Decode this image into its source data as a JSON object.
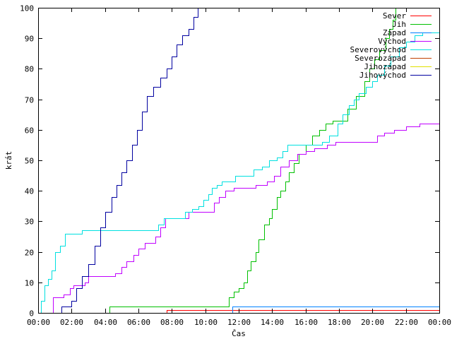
{
  "chart_data": {
    "type": "line",
    "title": "",
    "xlabel": "Čas",
    "ylabel": "krát",
    "xlim": [
      0,
      24
    ],
    "ylim": [
      0,
      100
    ],
    "x_ticks": [
      {
        "value": 0,
        "label": "00:00"
      },
      {
        "value": 2,
        "label": "02:00"
      },
      {
        "value": 4,
        "label": "04:00"
      },
      {
        "value": 6,
        "label": "06:00"
      },
      {
        "value": 8,
        "label": "08:00"
      },
      {
        "value": 10,
        "label": "10:00"
      },
      {
        "value": 12,
        "label": "12:00"
      },
      {
        "value": 14,
        "label": "14:00"
      },
      {
        "value": 16,
        "label": "16:00"
      },
      {
        "value": 18,
        "label": "18:00"
      },
      {
        "value": 20,
        "label": "20:00"
      },
      {
        "value": 22,
        "label": "22:00"
      },
      {
        "value": 24,
        "label": "00:00"
      }
    ],
    "y_ticks": [
      0,
      10,
      20,
      30,
      40,
      50,
      60,
      70,
      80,
      90,
      100
    ],
    "grid": false,
    "legend_position": "top-right",
    "series": [
      {
        "name": "Sever",
        "color": "#ff0000",
        "points": [
          [
            0,
            0
          ],
          [
            7.7,
            0
          ],
          [
            7.7,
            1
          ],
          [
            24,
            1
          ]
        ]
      },
      {
        "name": "Jih",
        "color": "#00c000",
        "points": [
          [
            0,
            0
          ],
          [
            4.25,
            0
          ],
          [
            4.25,
            2
          ],
          [
            11.3,
            2
          ],
          [
            11.4,
            5
          ],
          [
            11.7,
            7
          ],
          [
            12.0,
            8
          ],
          [
            12.3,
            10
          ],
          [
            12.5,
            14
          ],
          [
            12.7,
            17
          ],
          [
            13.0,
            20
          ],
          [
            13.2,
            24
          ],
          [
            13.5,
            29
          ],
          [
            13.8,
            31
          ],
          [
            14.0,
            34
          ],
          [
            14.3,
            38
          ],
          [
            14.5,
            40
          ],
          [
            14.8,
            43
          ],
          [
            15.0,
            46
          ],
          [
            15.3,
            49
          ],
          [
            15.6,
            52
          ],
          [
            16.0,
            55
          ],
          [
            16.4,
            58
          ],
          [
            16.8,
            60
          ],
          [
            17.2,
            62
          ],
          [
            17.6,
            63
          ],
          [
            18.2,
            63
          ],
          [
            18.5,
            67
          ],
          [
            19.0,
            71
          ],
          [
            19.5,
            76
          ],
          [
            19.8,
            80
          ],
          [
            20.1,
            83
          ],
          [
            20.4,
            86
          ],
          [
            20.8,
            90
          ],
          [
            21.0,
            93
          ],
          [
            21.2,
            96
          ],
          [
            21.4,
            100
          ]
        ]
      },
      {
        "name": "Západ",
        "color": "#0080ff",
        "points": [
          [
            0,
            0
          ],
          [
            11.6,
            0
          ],
          [
            11.6,
            2
          ],
          [
            24,
            2
          ]
        ]
      },
      {
        "name": "Východ",
        "color": "#c000ff",
        "points": [
          [
            0,
            0
          ],
          [
            0.7,
            0
          ],
          [
            0.9,
            5
          ],
          [
            1.5,
            6
          ],
          [
            1.9,
            8
          ],
          [
            2.1,
            9
          ],
          [
            2.8,
            10
          ],
          [
            3.0,
            12
          ],
          [
            4.4,
            12
          ],
          [
            4.6,
            13
          ],
          [
            5.0,
            15
          ],
          [
            5.3,
            17
          ],
          [
            5.7,
            19
          ],
          [
            6.0,
            21
          ],
          [
            6.4,
            23
          ],
          [
            7.0,
            25
          ],
          [
            7.3,
            28
          ],
          [
            7.6,
            31
          ],
          [
            8.5,
            31
          ],
          [
            9.0,
            33
          ],
          [
            10.3,
            33
          ],
          [
            10.5,
            36
          ],
          [
            10.8,
            38
          ],
          [
            11.2,
            40
          ],
          [
            11.7,
            41
          ],
          [
            12.7,
            41
          ],
          [
            13.0,
            42
          ],
          [
            13.7,
            43
          ],
          [
            14.1,
            45
          ],
          [
            14.5,
            48
          ],
          [
            15.0,
            50
          ],
          [
            15.5,
            52
          ],
          [
            16.0,
            53
          ],
          [
            16.5,
            54
          ],
          [
            17.0,
            54
          ],
          [
            17.3,
            55
          ],
          [
            17.8,
            56
          ],
          [
            20.0,
            56
          ],
          [
            20.3,
            58
          ],
          [
            20.7,
            59
          ],
          [
            21.3,
            60
          ],
          [
            22.0,
            61
          ],
          [
            22.8,
            62
          ],
          [
            24,
            62
          ]
        ]
      },
      {
        "name": "Severovýchod",
        "color": "#00e0e0",
        "points": [
          [
            0,
            0
          ],
          [
            0.15,
            4
          ],
          [
            0.4,
            9
          ],
          [
            0.6,
            11
          ],
          [
            0.8,
            14
          ],
          [
            1.0,
            20
          ],
          [
            1.3,
            22
          ],
          [
            1.6,
            26
          ],
          [
            2.4,
            26
          ],
          [
            2.6,
            27
          ],
          [
            6.9,
            27
          ],
          [
            7.2,
            29
          ],
          [
            7.5,
            31
          ],
          [
            8.4,
            31
          ],
          [
            8.8,
            33
          ],
          [
            9.2,
            34
          ],
          [
            9.6,
            35
          ],
          [
            9.9,
            37
          ],
          [
            10.2,
            39
          ],
          [
            10.4,
            41
          ],
          [
            10.7,
            42
          ],
          [
            11.0,
            43
          ],
          [
            11.5,
            43
          ],
          [
            11.8,
            45
          ],
          [
            12.6,
            45
          ],
          [
            12.9,
            47
          ],
          [
            13.4,
            48
          ],
          [
            13.8,
            50
          ],
          [
            14.3,
            51
          ],
          [
            14.6,
            53
          ],
          [
            14.9,
            55
          ],
          [
            16.7,
            55
          ],
          [
            17.0,
            56
          ],
          [
            17.4,
            58
          ],
          [
            17.9,
            62
          ],
          [
            18.2,
            65
          ],
          [
            18.6,
            68
          ],
          [
            18.9,
            70
          ],
          [
            19.2,
            72
          ],
          [
            19.6,
            74
          ],
          [
            20.0,
            76
          ],
          [
            20.3,
            78
          ],
          [
            20.7,
            81
          ],
          [
            21.1,
            84
          ],
          [
            21.6,
            87
          ],
          [
            22.0,
            89
          ],
          [
            22.5,
            91
          ],
          [
            23.0,
            92
          ],
          [
            24,
            92
          ]
        ]
      },
      {
        "name": "Severozápad",
        "color": "#c04000",
        "points": []
      },
      {
        "name": "Jihozápad",
        "color": "#e0e000",
        "points": []
      },
      {
        "name": "Jihovýchod",
        "color": "#0000a0",
        "points": [
          [
            0,
            0
          ],
          [
            1.3,
            0
          ],
          [
            1.4,
            2
          ],
          [
            2.0,
            4
          ],
          [
            2.3,
            8
          ],
          [
            2.6,
            12
          ],
          [
            3.0,
            16
          ],
          [
            3.4,
            22
          ],
          [
            3.7,
            28
          ],
          [
            4.0,
            33
          ],
          [
            4.4,
            38
          ],
          [
            4.7,
            42
          ],
          [
            5.0,
            46
          ],
          [
            5.3,
            50
          ],
          [
            5.6,
            55
          ],
          [
            5.9,
            60
          ],
          [
            6.2,
            66
          ],
          [
            6.5,
            71
          ],
          [
            6.9,
            74
          ],
          [
            7.3,
            77
          ],
          [
            7.7,
            80
          ],
          [
            8.0,
            84
          ],
          [
            8.3,
            88
          ],
          [
            8.6,
            91
          ],
          [
            9.0,
            93
          ],
          [
            9.3,
            97
          ],
          [
            9.55,
            100
          ]
        ]
      }
    ]
  }
}
